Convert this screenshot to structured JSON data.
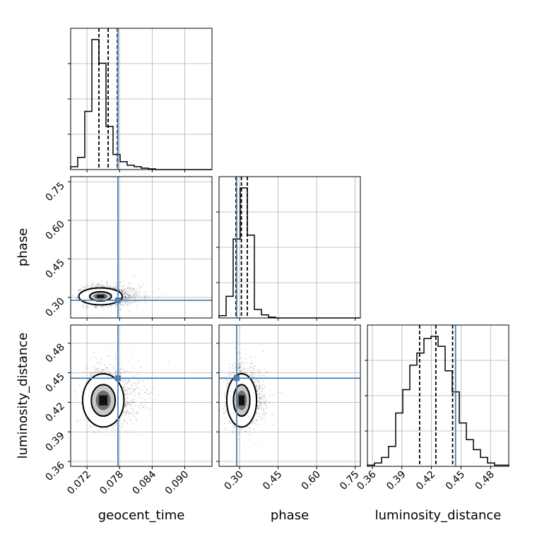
{
  "chart_data": {
    "type": "corner",
    "parameters": [
      "geocent_time",
      "phase",
      "luminosity_distance"
    ],
    "axes": {
      "geocent_time": {
        "range": [
          0.069,
          0.095
        ],
        "ticks": [
          0.072,
          0.078,
          0.084,
          0.09
        ],
        "tick_labels": [
          "0.072",
          "0.078",
          "0.084",
          "0.090"
        ]
      },
      "phase": {
        "range": [
          0.22,
          0.77
        ],
        "ticks": [
          0.3,
          0.45,
          0.6,
          0.75
        ],
        "tick_labels": [
          "0.30",
          "0.45",
          "0.60",
          "0.75"
        ]
      },
      "luminosity_distance": {
        "range": [
          0.355,
          0.4985
        ],
        "ticks": [
          0.36,
          0.39,
          0.42,
          0.45,
          0.48
        ],
        "tick_labels": [
          "0.36",
          "0.39",
          "0.42",
          "0.45",
          "0.48"
        ]
      }
    },
    "truths": {
      "geocent_time": 0.0777,
      "phase": 0.2888,
      "luminosity_distance": 0.4445
    },
    "quantiles": {
      "geocent_time": [
        0.0742,
        0.0759,
        0.0776
      ],
      "phase": [
        0.286,
        0.307,
        0.33
      ],
      "luminosity_distance": [
        0.408,
        0.4245,
        0.4415
      ]
    },
    "histograms": {
      "geocent_time": {
        "edges": [
          0.069,
          0.0703,
          0.0716,
          0.0729,
          0.0742,
          0.0755,
          0.0768,
          0.0781,
          0.0794,
          0.0807,
          0.082,
          0.0833,
          0.0846,
          0.0859,
          0.0872,
          0.0885,
          0.0898,
          0.0911,
          0.0924,
          0.0937,
          0.095
        ],
        "counts": [
          4,
          17,
          81,
          181,
          148,
          60,
          21,
          11,
          6,
          4,
          2,
          1,
          0,
          0,
          0,
          0,
          0,
          0,
          0,
          0
        ]
      },
      "phase": {
        "edges": [
          0.22,
          0.2475,
          0.275,
          0.3025,
          0.33,
          0.3575,
          0.385,
          0.4125,
          0.44,
          0.4675,
          0.495,
          0.5225,
          0.55,
          0.5775,
          0.605,
          0.6325,
          0.66,
          0.6875,
          0.715,
          0.7425,
          0.77
        ],
        "counts": [
          3,
          28,
          102,
          168,
          107,
          11,
          4,
          1,
          0,
          0,
          0,
          0,
          0,
          0,
          0,
          0,
          0,
          0,
          0,
          0
        ]
      },
      "luminosity_distance": {
        "edges": [
          0.355,
          0.36218,
          0.36935,
          0.37652,
          0.3837,
          0.39088,
          0.39805,
          0.40522,
          0.4124,
          0.41958,
          0.42675,
          0.43392,
          0.4411,
          0.44828,
          0.45545,
          0.46262,
          0.4698,
          0.47698,
          0.48415,
          0.49132,
          0.4985
        ],
        "counts": [
          1,
          3,
          8,
          18,
          48,
          69,
          91,
          102,
          115,
          117,
          108,
          86,
          67,
          39,
          24,
          15,
          8,
          3,
          1,
          1
        ]
      }
    },
    "scatter_2d": [
      {
        "x": "geocent_time",
        "y": "phase",
        "center": [
          0.075,
          0.303
        ],
        "spread": [
          0.0018,
          0.02
        ],
        "mode": [
          0.0745,
          0.304
        ],
        "contours": [
          {
            "rx": 0.004,
            "ry": 0.033
          },
          {
            "rx": 0.002,
            "ry": 0.018
          }
        ]
      },
      {
        "x": "geocent_time",
        "y": "luminosity_distance",
        "center": [
          0.0753,
          0.424
        ],
        "spread": [
          0.0017,
          0.013
        ],
        "mode": [
          0.075,
          0.422
        ],
        "contours": [
          {
            "rx": 0.0038,
            "ry": 0.027
          },
          {
            "rx": 0.0022,
            "ry": 0.016
          }
        ]
      },
      {
        "x": "phase",
        "y": "luminosity_distance",
        "center": [
          0.306,
          0.424
        ],
        "spread": [
          0.025,
          0.013
        ],
        "mode": [
          0.308,
          0.422
        ],
        "contours": [
          {
            "rx": 0.058,
            "ry": 0.027
          },
          {
            "rx": 0.032,
            "ry": 0.016
          }
        ]
      }
    ],
    "grid": true
  }
}
